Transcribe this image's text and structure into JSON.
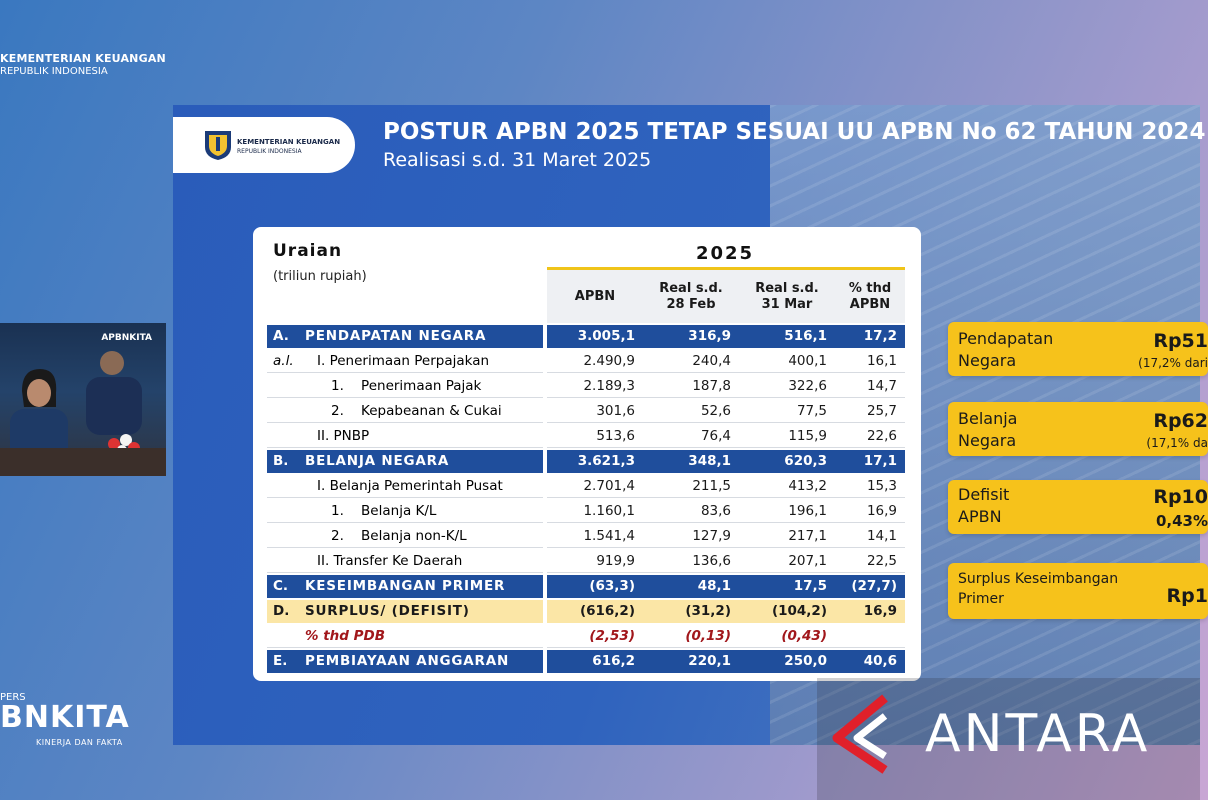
{
  "branding": {
    "ministry_line1": "KEMENTERIAN KEUANGAN",
    "ministry_line2": "REPUBLIK INDONESIA",
    "webcam_logo": "APBNKITA",
    "konpers_label": "PERS",
    "konpers_title": "BNKITA",
    "konpers_tagline": "KINERJA DAN FAKTA",
    "watermark": "ANTARA"
  },
  "slide": {
    "logo_line1": "KEMENTERIAN KEUANGAN",
    "logo_line2": "REPUBLIK INDONESIA",
    "title": "POSTUR APBN 2025 TETAP SESUAI UU APBN No 62 TAHUN 2024",
    "subtitle": "Realisasi s.d. 31 Maret 2025"
  },
  "table": {
    "uraian_header": "Uraian",
    "unit_label": "(triliun rupiah)",
    "year_header": "2025",
    "columns": [
      "APBN",
      "Real s.d.\n28 Feb",
      "Real s.d.\n31 Mar",
      "% thd\nAPBN"
    ],
    "rows": [
      {
        "code": "A.",
        "label": "PENDAPATAN NEGARA",
        "values": [
          "3.005,1",
          "316,9",
          "516,1",
          "17,2"
        ]
      },
      {
        "code": "a.l.",
        "label": "I. Penerimaan Perpajakan",
        "values": [
          "2.490,9",
          "240,4",
          "400,1",
          "16,1"
        ]
      },
      {
        "code": "",
        "label": "1.    Penerimaan Pajak",
        "values": [
          "2.189,3",
          "187,8",
          "322,6",
          "14,7"
        ]
      },
      {
        "code": "",
        "label": "2.    Kepabeanan & Cukai",
        "values": [
          "301,6",
          "52,6",
          "77,5",
          "25,7"
        ]
      },
      {
        "code": "",
        "label": "II. PNBP",
        "values": [
          "513,6",
          "76,4",
          "115,9",
          "22,6"
        ]
      },
      {
        "code": "B.",
        "label": "BELANJA NEGARA",
        "values": [
          "3.621,3",
          "348,1",
          "620,3",
          "17,1"
        ]
      },
      {
        "code": "",
        "label": "I. Belanja Pemerintah Pusat",
        "values": [
          "2.701,4",
          "211,5",
          "413,2",
          "15,3"
        ]
      },
      {
        "code": "",
        "label": "1.    Belanja K/L",
        "values": [
          "1.160,1",
          "83,6",
          "196,1",
          "16,9"
        ]
      },
      {
        "code": "",
        "label": "2.    Belanja non-K/L",
        "values": [
          "1.541,4",
          "127,9",
          "217,1",
          "14,1"
        ]
      },
      {
        "code": "",
        "label": "II. Transfer Ke Daerah",
        "values": [
          "919,9",
          "136,6",
          "207,1",
          "22,5"
        ]
      },
      {
        "code": "C.",
        "label": "KESEIMBANGAN PRIMER",
        "values": [
          "(63,3)",
          "48,1",
          "17,5",
          "(27,7)"
        ]
      },
      {
        "code": "D.",
        "label": "SURPLUS/ (DEFISIT)",
        "values": [
          "(616,2)",
          "(31,2)",
          "(104,2)",
          "16,9"
        ]
      },
      {
        "code": "",
        "label": "% thd PDB",
        "values": [
          "(2,53)",
          "(0,13)",
          "(0,43)",
          ""
        ]
      },
      {
        "code": "E.",
        "label": "PEMBIAYAAN ANGGARAN",
        "values": [
          "616,2",
          "220,1",
          "250,0",
          "40,6"
        ]
      }
    ]
  },
  "callouts": [
    {
      "name": "Pendapatan\nNegara",
      "value": "Rp51",
      "note": "(17,2% dari"
    },
    {
      "name": "Belanja\nNegara",
      "value": "Rp62",
      "note": "(17,1% da"
    },
    {
      "name": "Defisit\nAPBN",
      "value": "Rp10",
      "note": "0,43%"
    },
    {
      "name": "Surplus Keseimbangan\nPrimer",
      "value": "Rp1",
      "note": ""
    }
  ],
  "colors": {
    "slide_blue": "#2a5cba",
    "row_major": "#1f4e9c",
    "row_surplus": "#fbe6a6",
    "pdb_red": "#a1171b",
    "callout_yellow": "#f6c21b",
    "year_line": "#f0c419"
  },
  "icons": [
    "ministry-emblem-icon",
    "antara-logo-icon"
  ]
}
